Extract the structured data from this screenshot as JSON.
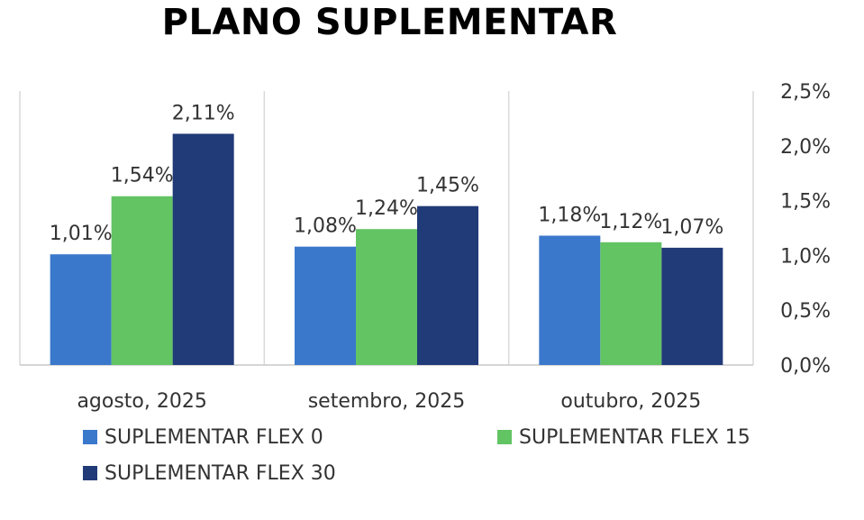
{
  "chart_data": {
    "type": "bar",
    "title": "PLANO SUPLEMENTAR",
    "categories": [
      "agosto, 2025",
      "setembro, 2025",
      "outubro, 2025"
    ],
    "series": [
      {
        "name": "SUPLEMENTAR FLEX 0",
        "color": "#3A78CC",
        "values": [
          1.01,
          1.08,
          1.18
        ],
        "labels": [
          "1,01%",
          "1,08%",
          "1,18%"
        ]
      },
      {
        "name": "SUPLEMENTAR FLEX 15",
        "color": "#62C463",
        "values": [
          1.54,
          1.24,
          1.12
        ],
        "labels": [
          "1,54%",
          "1,24%",
          "1,12%"
        ]
      },
      {
        "name": "SUPLEMENTAR FLEX 30",
        "color": "#213A78",
        "values": [
          2.11,
          1.45,
          1.07
        ],
        "labels": [
          "2,11%",
          "1,45%",
          "1,07%"
        ]
      }
    ],
    "yticks": [
      "0,0%",
      "0,5%",
      "1,0%",
      "1,5%",
      "2,0%",
      "2,5%"
    ],
    "ylim": [
      0,
      2.5
    ],
    "yaxis_position": "right",
    "legend_position": "bottom",
    "grid": "vertical category separators"
  }
}
